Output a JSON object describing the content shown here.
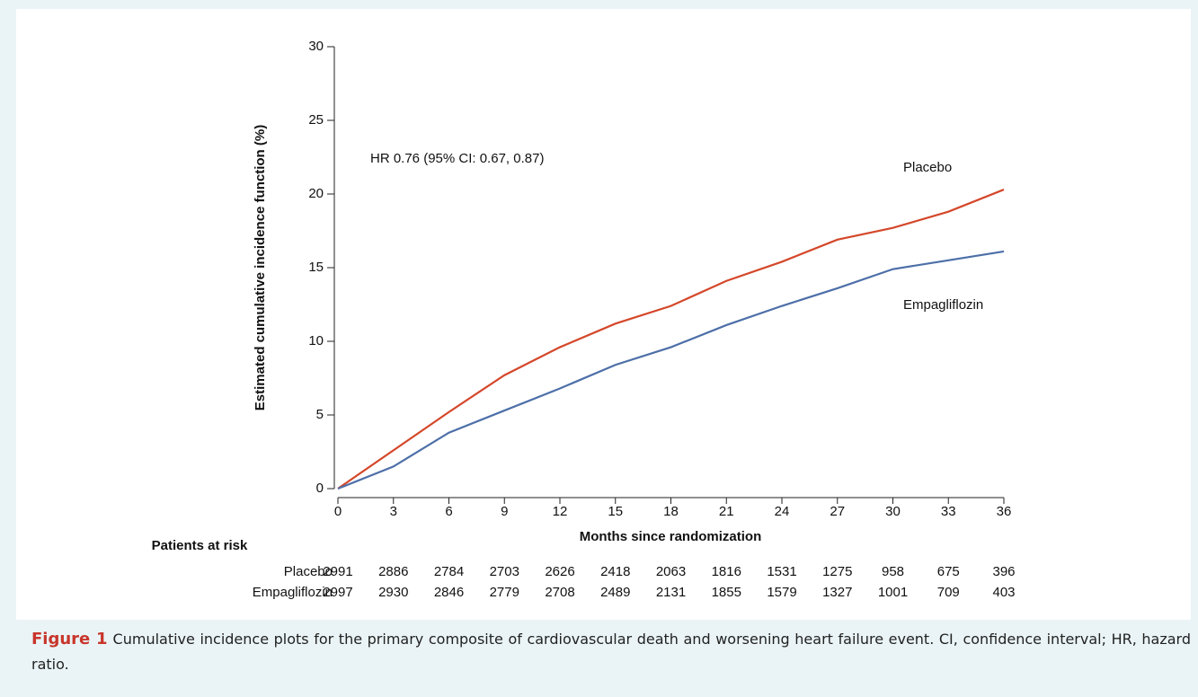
{
  "chart_data": {
    "type": "line",
    "y_label": "Estimated cumulative incidence function (%)",
    "x_label": "Months since randomization",
    "annotation": "HR 0.76 (95% CI: 0.67, 0.87)",
    "x": [
      0,
      3,
      6,
      9,
      12,
      15,
      18,
      21,
      24,
      27,
      30,
      33,
      36
    ],
    "series": [
      {
        "name": "Placebo",
        "color": "#d4472a",
        "values": [
          0,
          2.6,
          5.2,
          7.7,
          9.6,
          11.2,
          12.4,
          14.1,
          15.4,
          16.9,
          17.7,
          18.8,
          20.3
        ]
      },
      {
        "name": "Empagliflozin",
        "color": "#4d6fa8",
        "values": [
          0,
          1.5,
          3.8,
          5.3,
          6.8,
          8.4,
          9.6,
          11.1,
          12.4,
          13.6,
          14.9,
          15.5,
          16.1
        ]
      }
    ],
    "xlim": [
      0,
      36
    ],
    "xticks": [
      0,
      3,
      6,
      9,
      12,
      15,
      18,
      21,
      24,
      27,
      30,
      33,
      36
    ],
    "ylim": [
      0,
      30
    ],
    "yticks": [
      0,
      5,
      10,
      15,
      20,
      25,
      30
    ],
    "at_risk": {
      "title": "Patients at risk",
      "values": [
        [
          2991,
          2886,
          2784,
          2703,
          2626,
          2418,
          2063,
          1816,
          1531,
          1275,
          958,
          675,
          396
        ],
        [
          2997,
          2930,
          2846,
          2779,
          2708,
          2489,
          2131,
          1855,
          1579,
          1327,
          1001,
          709,
          403
        ]
      ]
    }
  },
  "caption": {
    "label": "Figure 1",
    "text": "Cumulative incidence plots for the primary composite of cardiovascular death and worsening heart failure event. CI, confidence interval; HR, hazard ratio."
  }
}
